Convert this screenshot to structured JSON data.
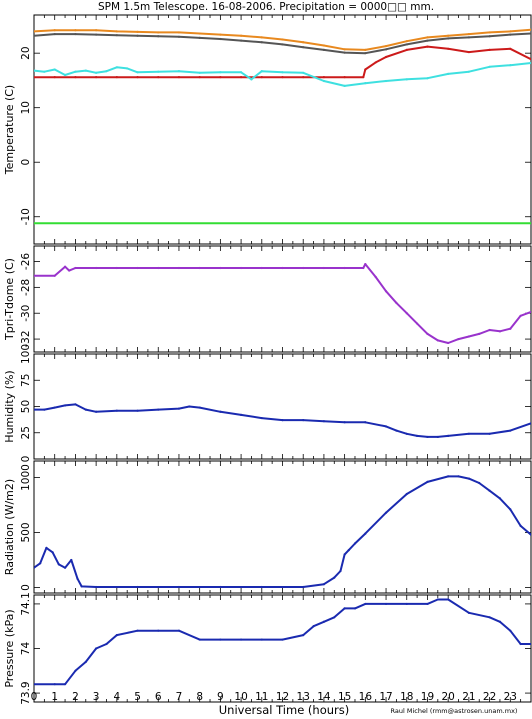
{
  "chart_data": {
    "title": "SPM 1.5m Telescope. 16-08-2006. Precipitation = 0000□□ mm.",
    "xlabel": "Universal Time (hours)",
    "credit": "Raul Michel (rmm@astrosen.unam.mx)",
    "x_ticks": [
      "0",
      "1",
      "2",
      "3",
      "4",
      "5",
      "6",
      "7",
      "8",
      "9",
      "10",
      "11",
      "12",
      "13",
      "14",
      "15",
      "16",
      "17",
      "18",
      "19",
      "20",
      "21",
      "22",
      "23"
    ],
    "xlim": [
      0,
      24
    ],
    "panels": [
      {
        "id": "temperature",
        "type": "scatter",
        "ylabel": "Temperature (C)",
        "ylim": [
          -15,
          27
        ],
        "y_ticks": [
          {
            "v": -10,
            "t": "-10"
          },
          {
            "v": 0,
            "t": "0"
          },
          {
            "v": 10,
            "t": "10"
          },
          {
            "v": 20,
            "t": "20"
          }
        ],
        "series": [
          {
            "color": "#e8891f",
            "x": [
              0,
              1,
              2,
              3,
              4,
              5,
              6,
              7,
              8,
              9,
              10,
              11,
              12,
              13,
              14,
              15,
              16,
              17,
              18,
              19,
              20,
              21,
              22,
              23,
              24
            ],
            "values": [
              24.0,
              24.2,
              24.2,
              24.2,
              24.0,
              23.9,
              23.8,
              23.8,
              23.6,
              23.4,
              23.2,
              22.9,
              22.5,
              22.0,
              21.4,
              20.7,
              20.6,
              21.3,
              22.2,
              22.9,
              23.2,
              23.5,
              23.8,
              24.0,
              24.3
            ]
          },
          {
            "color": "#555555",
            "x": [
              0,
              1,
              2,
              3,
              4,
              5,
              6,
              7,
              8,
              9,
              10,
              11,
              12,
              13,
              14,
              15,
              16,
              17,
              18,
              19,
              20,
              21,
              22,
              23,
              24
            ],
            "values": [
              23.2,
              23.5,
              23.5,
              23.4,
              23.3,
              23.2,
              23.1,
              23.0,
              22.8,
              22.6,
              22.3,
              22.0,
              21.6,
              21.1,
              20.6,
              20.1,
              20.0,
              20.7,
              21.6,
              22.3,
              22.7,
              22.9,
              23.1,
              23.4,
              23.6
            ]
          },
          {
            "color": "#cc1a1a",
            "x": [
              0,
              1,
              2,
              3,
              4,
              5,
              6,
              7,
              8,
              9,
              10,
              11,
              12,
              13,
              14,
              15,
              15.9,
              16,
              16.5,
              17,
              18,
              19,
              20,
              21,
              22,
              23,
              24
            ],
            "values": [
              15.6,
              15.6,
              15.6,
              15.6,
              15.6,
              15.6,
              15.6,
              15.6,
              15.6,
              15.6,
              15.6,
              15.6,
              15.6,
              15.6,
              15.6,
              15.6,
              15.6,
              17.0,
              18.3,
              19.3,
              20.6,
              21.2,
              20.8,
              20.2,
              20.6,
              20.8,
              18.9
            ]
          },
          {
            "color": "#3ee0e0",
            "x": [
              0,
              0.5,
              1,
              1.5,
              2,
              2.5,
              3,
              3.5,
              4,
              4.5,
              5,
              6,
              7,
              8,
              9,
              10,
              10.5,
              11,
              12,
              13,
              14,
              15,
              16,
              17,
              18,
              19,
              20,
              21,
              22,
              23,
              24
            ],
            "values": [
              16.8,
              16.6,
              17.0,
              16.0,
              16.6,
              16.8,
              16.4,
              16.7,
              17.4,
              17.2,
              16.5,
              16.6,
              16.7,
              16.4,
              16.5,
              16.5,
              15.2,
              16.7,
              16.5,
              16.4,
              14.9,
              14.0,
              14.5,
              14.9,
              15.2,
              15.4,
              16.2,
              16.6,
              17.5,
              17.8,
              18.2
            ]
          },
          {
            "color": "#33dd33",
            "x": [
              0,
              24
            ],
            "values": [
              -11.2,
              -11.2
            ]
          }
        ]
      },
      {
        "id": "tpri",
        "type": "scatter",
        "ylabel": "Tpri-Tdome (C)",
        "ylim": [
          -33,
          -24.8
        ],
        "y_ticks": [
          {
            "v": -32,
            "t": "-32"
          },
          {
            "v": -30,
            "t": "-30"
          },
          {
            "v": -28,
            "t": "-28"
          },
          {
            "v": -26,
            "t": "-26"
          }
        ],
        "series": [
          {
            "color": "#9933cc",
            "x": [
              0,
              1,
              1.5,
              1.7,
              2,
              3,
              4,
              5,
              6,
              7,
              8,
              9,
              10,
              11,
              12,
              13,
              14,
              15,
              15.9,
              16,
              16.5,
              17,
              17.5,
              18,
              18.5,
              19,
              19.5,
              20,
              20.5,
              21,
              21.5,
              22,
              22.5,
              23,
              23.5,
              24
            ],
            "values": [
              -27.1,
              -27.1,
              -26.4,
              -26.7,
              -26.5,
              -26.5,
              -26.5,
              -26.5,
              -26.5,
              -26.5,
              -26.5,
              -26.5,
              -26.5,
              -26.5,
              -26.5,
              -26.5,
              -26.5,
              -26.5,
              -26.5,
              -26.2,
              -27.2,
              -28.3,
              -29.2,
              -30.0,
              -30.8,
              -31.6,
              -32.1,
              -32.3,
              -32.0,
              -31.8,
              -31.6,
              -31.3,
              -31.4,
              -31.2,
              -30.2,
              -29.9
            ]
          }
        ]
      },
      {
        "id": "humidity",
        "type": "scatter",
        "ylabel": "Humidity (%)",
        "ylim": [
          0,
          100
        ],
        "y_ticks": [
          {
            "v": 0,
            "t": "0"
          },
          {
            "v": 25,
            "t": "25"
          },
          {
            "v": 50,
            "t": "50"
          },
          {
            "v": 75,
            "t": "75"
          },
          {
            "v": 100,
            "t": "100"
          }
        ],
        "series": [
          {
            "color": "#1a2ab0",
            "x": [
              0,
              0.5,
              1,
              1.5,
              2,
              2.5,
              3,
              4,
              5,
              6,
              7,
              7.5,
              8,
              9,
              10,
              11,
              12,
              13,
              14,
              15,
              16,
              17,
              17.5,
              18,
              18.5,
              19,
              19.5,
              20,
              21,
              22,
              23,
              24
            ],
            "values": [
              47,
              47,
              49,
              51,
              52,
              47,
              45,
              46,
              46,
              47,
              48,
              50,
              49,
              45,
              42,
              39,
              37,
              37,
              36,
              35,
              35,
              31,
              27,
              24,
              22,
              21,
              21,
              22,
              24,
              24,
              27,
              34
            ]
          }
        ]
      },
      {
        "id": "radiation",
        "type": "scatter",
        "ylabel": "Radiation (W/m2)",
        "ylim": [
          -50,
          1150
        ],
        "y_ticks": [
          {
            "v": 0,
            "t": "0"
          },
          {
            "v": 500,
            "t": "500"
          },
          {
            "v": 1000,
            "t": "1000"
          }
        ],
        "series": [
          {
            "color": "#1a2ab0",
            "x": [
              0,
              0.3,
              0.6,
              0.9,
              1.2,
              1.5,
              1.8,
              2.1,
              2.3,
              3,
              5,
              7,
              9,
              11,
              13,
              14,
              14.5,
              14.8,
              15,
              15.2,
              15.5,
              16,
              17,
              18,
              19,
              20,
              20.5,
              21,
              21.5,
              22,
              22.5,
              23,
              23.5,
              24
            ],
            "values": [
              180,
              220,
              360,
              320,
              210,
              180,
              250,
              80,
              10,
              5,
              5,
              5,
              5,
              5,
              5,
              30,
              90,
              150,
              300,
              340,
              400,
              490,
              680,
              850,
              960,
              1010,
              1010,
              990,
              950,
              880,
              810,
              710,
              560,
              480
            ]
          }
        ]
      },
      {
        "id": "pressure",
        "type": "scatter",
        "ylabel": "Pressure (kPa)",
        "ylim": [
          73.88,
          74.12
        ],
        "y_ticks": [
          {
            "v": 73.9,
            "t": "73.9"
          },
          {
            "v": 74.0,
            "t": "74"
          },
          {
            "v": 74.1,
            "t": "74.1"
          }
        ],
        "series": [
          {
            "color": "#1a2ab0",
            "x": [
              0,
              1,
              1.5,
              2,
              2.5,
              3,
              3.5,
              4,
              5,
              6,
              7,
              8,
              9,
              10,
              11,
              12,
              13,
              13.5,
              14,
              14.5,
              15,
              15.5,
              16,
              17,
              18,
              19,
              19.5,
              20,
              21,
              22,
              22.5,
              23,
              23.5,
              24
            ],
            "values": [
              73.92,
              73.92,
              73.92,
              73.95,
              73.97,
              74.0,
              74.01,
              74.03,
              74.04,
              74.04,
              74.04,
              74.02,
              74.02,
              74.02,
              74.02,
              74.02,
              74.03,
              74.05,
              74.06,
              74.07,
              74.09,
              74.09,
              74.1,
              74.1,
              74.1,
              74.1,
              74.11,
              74.11,
              74.08,
              74.07,
              74.06,
              74.04,
              74.01,
              74.01
            ]
          }
        ]
      }
    ]
  }
}
